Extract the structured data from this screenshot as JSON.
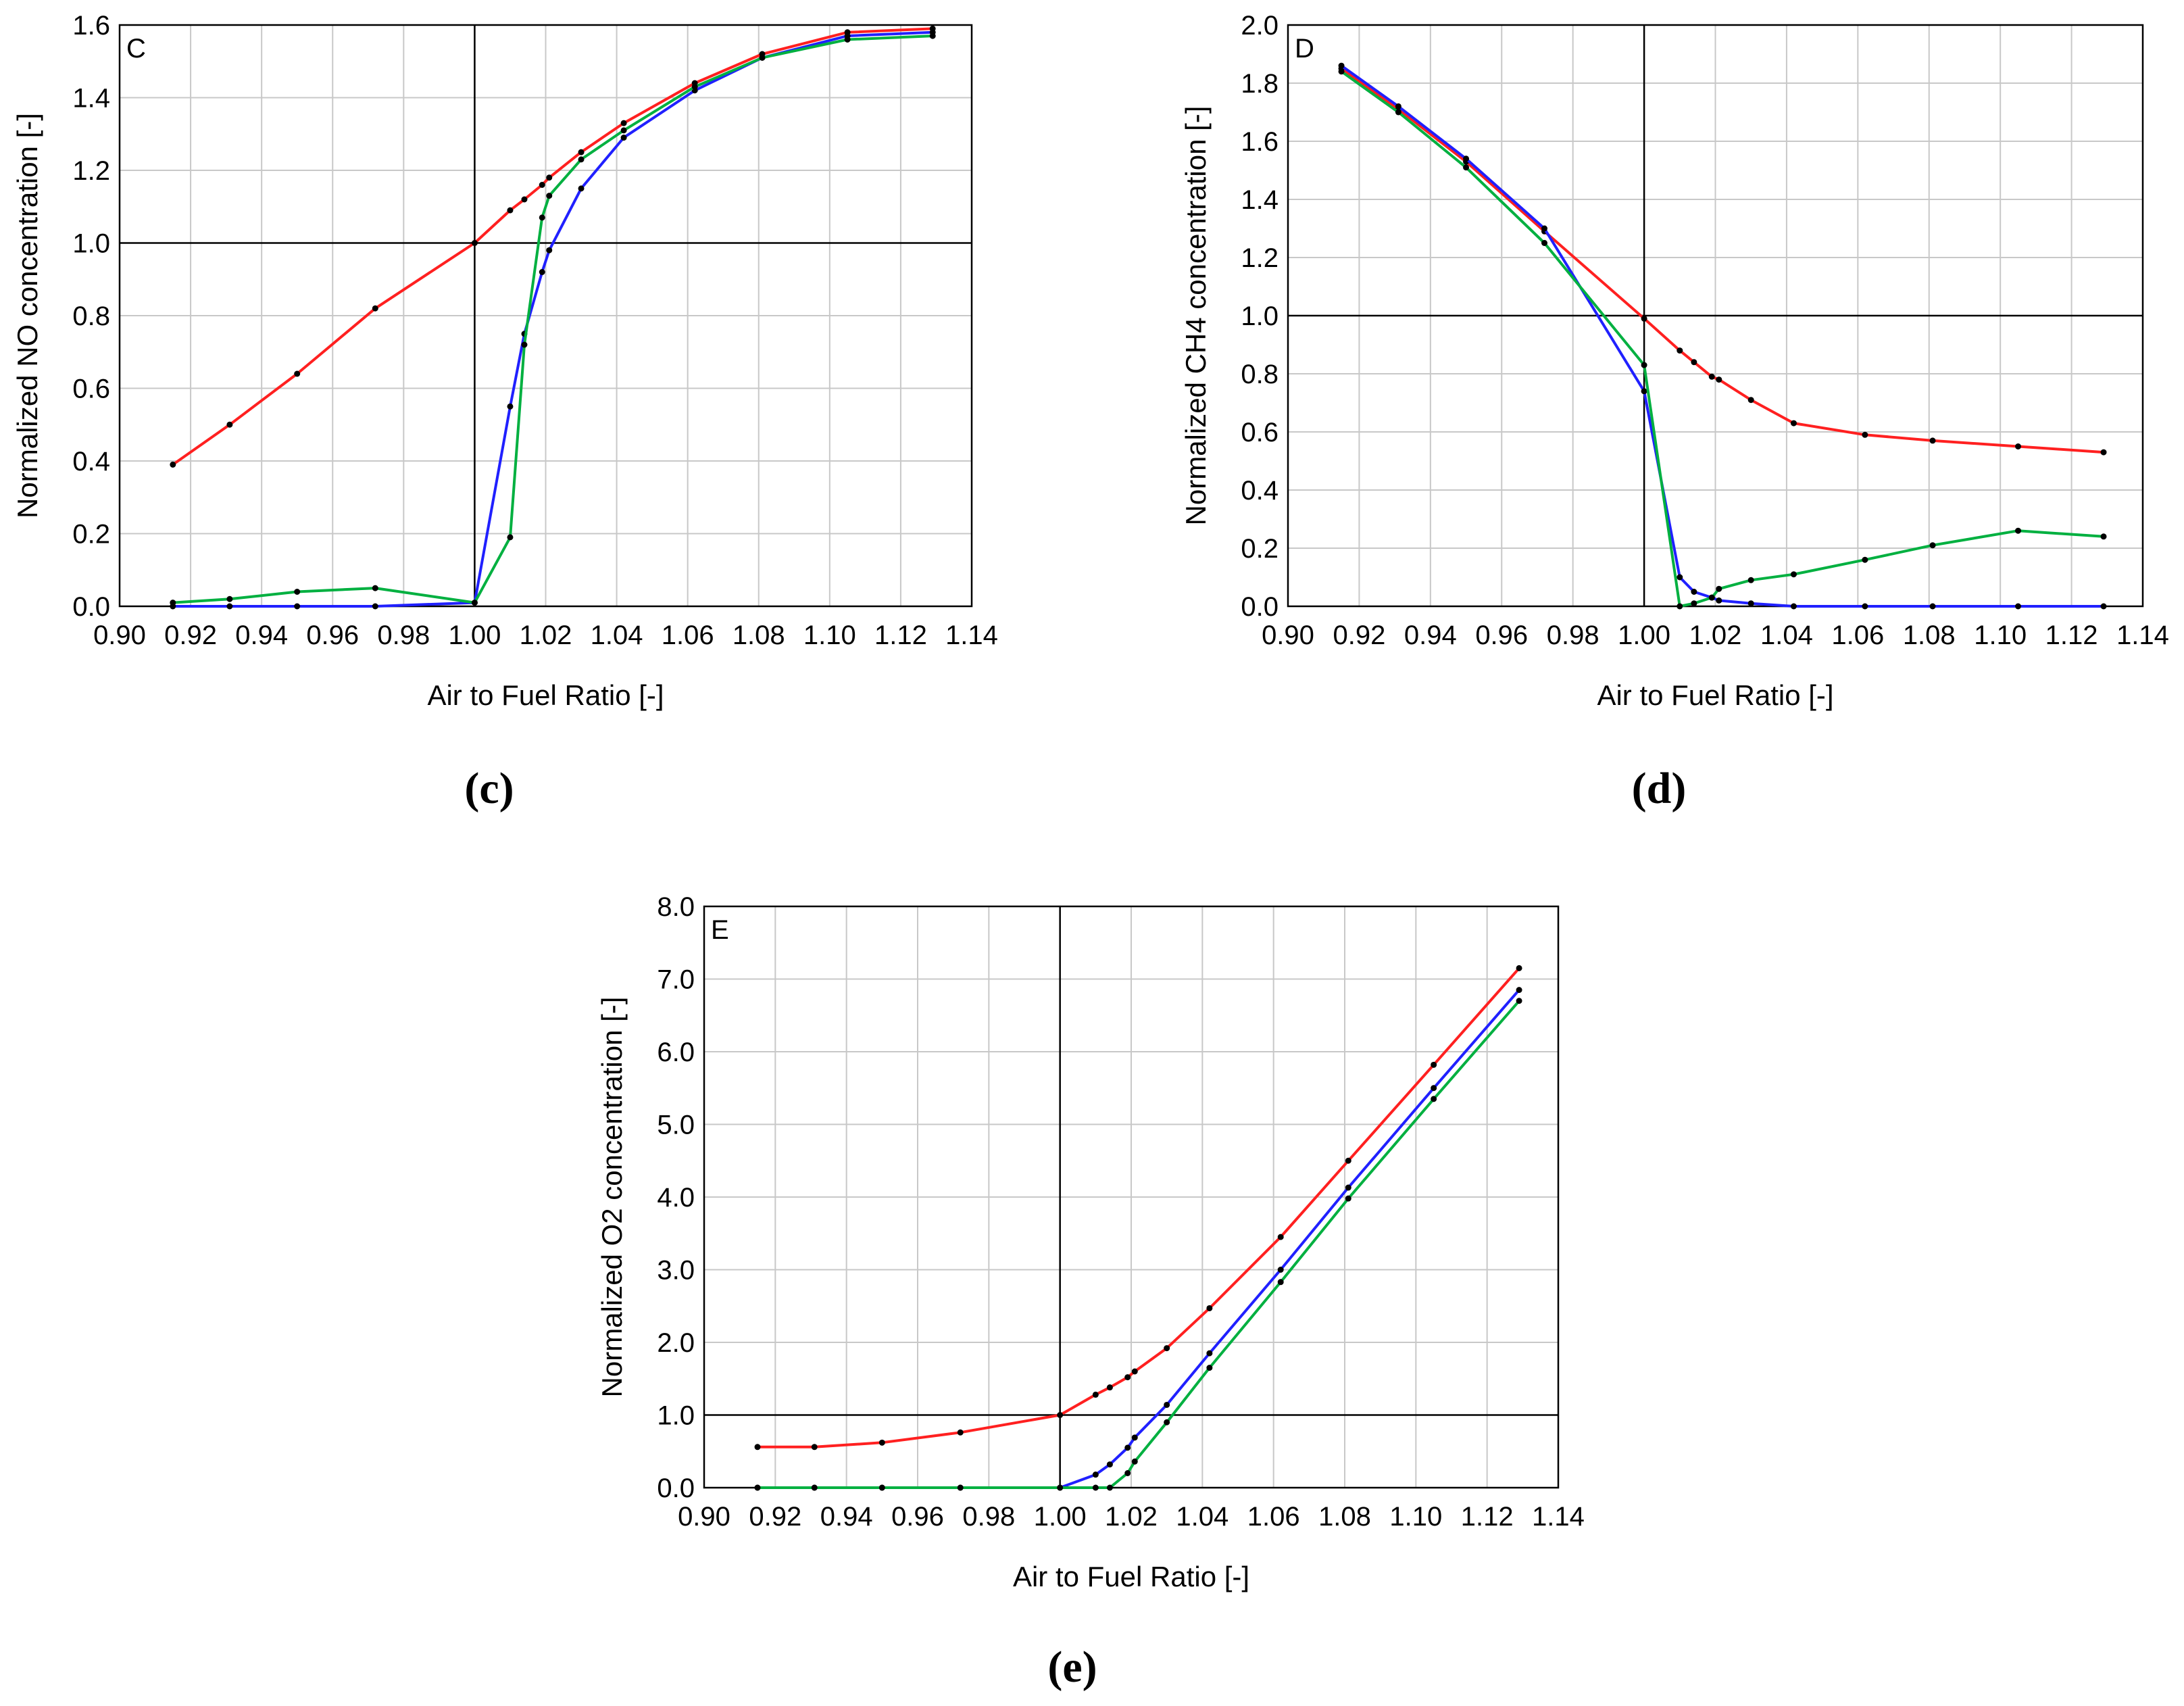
{
  "chart_data": [
    {
      "type": "line",
      "panel_label": "C",
      "caption": "(c)",
      "title": "",
      "xlabel": "Air to Fuel Ratio [-]",
      "ylabel": "Normalized NO concentration [-]",
      "xlim": [
        0.9,
        1.14
      ],
      "ylim": [
        0.0,
        1.6
      ],
      "xticks": [
        "0.90",
        "0.92",
        "0.94",
        "0.96",
        "0.98",
        "1.00",
        "1.02",
        "1.04",
        "1.06",
        "1.08",
        "1.10",
        "1.12",
        "1.14"
      ],
      "yticks": [
        "0.0",
        "0.2",
        "0.4",
        "0.6",
        "0.8",
        "1.0",
        "1.2",
        "1.4",
        "1.6"
      ],
      "reference_lines": {
        "x": 1.0,
        "y": 1.0
      },
      "grid": true,
      "series": [
        {
          "name": "red",
          "color": "#ff2020",
          "x": [
            0.915,
            0.931,
            0.95,
            0.972,
            1.0,
            1.01,
            1.014,
            1.019,
            1.021,
            1.03,
            1.042,
            1.062,
            1.081,
            1.105,
            1.129
          ],
          "y": [
            0.39,
            0.5,
            0.64,
            0.82,
            1.0,
            1.09,
            1.12,
            1.16,
            1.18,
            1.25,
            1.33,
            1.44,
            1.52,
            1.58,
            1.59
          ]
        },
        {
          "name": "blue",
          "color": "#2020ff",
          "x": [
            0.915,
            0.931,
            0.95,
            0.972,
            1.0,
            1.01,
            1.014,
            1.019,
            1.021,
            1.03,
            1.042,
            1.062,
            1.081,
            1.105,
            1.129
          ],
          "y": [
            0.0,
            0.0,
            0.0,
            0.0,
            0.01,
            0.55,
            0.75,
            0.92,
            0.98,
            1.15,
            1.29,
            1.42,
            1.51,
            1.57,
            1.58
          ]
        },
        {
          "name": "green",
          "color": "#00b040",
          "x": [
            0.915,
            0.931,
            0.95,
            0.972,
            1.0,
            1.01,
            1.014,
            1.019,
            1.021,
            1.03,
            1.042,
            1.062,
            1.081,
            1.105,
            1.129
          ],
          "y": [
            0.01,
            0.02,
            0.04,
            0.05,
            0.01,
            0.19,
            0.72,
            1.07,
            1.13,
            1.23,
            1.31,
            1.43,
            1.51,
            1.56,
            1.57
          ]
        }
      ]
    },
    {
      "type": "line",
      "panel_label": "D",
      "caption": "(d)",
      "title": "",
      "xlabel": "Air to Fuel Ratio [-]",
      "ylabel": "Normalized CH4 concentration [-]",
      "xlim": [
        0.9,
        1.14
      ],
      "ylim": [
        0.0,
        2.0
      ],
      "xticks": [
        "0.90",
        "0.92",
        "0.94",
        "0.96",
        "0.98",
        "1.00",
        "1.02",
        "1.04",
        "1.06",
        "1.08",
        "1.10",
        "1.12",
        "1.14"
      ],
      "yticks": [
        "0.0",
        "0.2",
        "0.4",
        "0.6",
        "0.8",
        "1.0",
        "1.2",
        "1.4",
        "1.6",
        "1.8",
        "2.0"
      ],
      "reference_lines": {
        "x": 1.0,
        "y": 1.0
      },
      "grid": true,
      "series": [
        {
          "name": "red",
          "color": "#ff2020",
          "x": [
            0.915,
            0.931,
            0.95,
            0.972,
            1.0,
            1.01,
            1.014,
            1.019,
            1.021,
            1.03,
            1.042,
            1.062,
            1.081,
            1.105,
            1.129
          ],
          "y": [
            1.85,
            1.71,
            1.53,
            1.29,
            0.99,
            0.88,
            0.84,
            0.79,
            0.78,
            0.71,
            0.63,
            0.59,
            0.57,
            0.55,
            0.53
          ]
        },
        {
          "name": "blue",
          "color": "#2020ff",
          "x": [
            0.915,
            0.931,
            0.95,
            0.972,
            1.0,
            1.01,
            1.014,
            1.019,
            1.021,
            1.03,
            1.042,
            1.062,
            1.081,
            1.105,
            1.129
          ],
          "y": [
            1.86,
            1.72,
            1.54,
            1.3,
            0.74,
            0.1,
            0.05,
            0.03,
            0.02,
            0.01,
            0.0,
            0.0,
            0.0,
            0.0,
            0.0
          ]
        },
        {
          "name": "green",
          "color": "#00b040",
          "x": [
            0.915,
            0.931,
            0.95,
            0.972,
            1.0,
            1.01,
            1.014,
            1.019,
            1.021,
            1.03,
            1.042,
            1.062,
            1.081,
            1.105,
            1.129
          ],
          "y": [
            1.84,
            1.7,
            1.51,
            1.25,
            0.83,
            0.0,
            0.01,
            0.03,
            0.06,
            0.09,
            0.11,
            0.16,
            0.21,
            0.26,
            0.24
          ]
        }
      ]
    },
    {
      "type": "line",
      "panel_label": "E",
      "caption": "(e)",
      "title": "",
      "xlabel": "Air to Fuel Ratio [-]",
      "ylabel": "Normalized O2 concentration [-]",
      "xlim": [
        0.9,
        1.14
      ],
      "ylim": [
        0.0,
        8.0
      ],
      "xticks": [
        "0.90",
        "0.92",
        "0.94",
        "0.96",
        "0.98",
        "1.00",
        "1.02",
        "1.04",
        "1.06",
        "1.08",
        "1.10",
        "1.12",
        "1.14"
      ],
      "yticks": [
        "0.0",
        "1.0",
        "2.0",
        "3.0",
        "4.0",
        "5.0",
        "6.0",
        "7.0",
        "8.0"
      ],
      "reference_lines": {
        "x": 1.0,
        "y": 1.0
      },
      "grid": true,
      "series": [
        {
          "name": "red",
          "color": "#ff2020",
          "x": [
            0.915,
            0.931,
            0.95,
            0.972,
            1.0,
            1.01,
            1.014,
            1.019,
            1.021,
            1.03,
            1.042,
            1.062,
            1.081,
            1.105,
            1.129
          ],
          "y": [
            0.56,
            0.56,
            0.62,
            0.76,
            1.0,
            1.28,
            1.38,
            1.52,
            1.6,
            1.92,
            2.47,
            3.45,
            4.5,
            5.82,
            7.15
          ]
        },
        {
          "name": "blue",
          "color": "#2020ff",
          "x": [
            0.915,
            0.931,
            0.95,
            0.972,
            1.0,
            1.01,
            1.014,
            1.019,
            1.021,
            1.03,
            1.042,
            1.062,
            1.081,
            1.105,
            1.129
          ],
          "y": [
            0.0,
            0.0,
            0.0,
            0.0,
            0.0,
            0.18,
            0.32,
            0.55,
            0.69,
            1.14,
            1.85,
            3.0,
            4.13,
            5.5,
            6.85
          ]
        },
        {
          "name": "green",
          "color": "#00b040",
          "x": [
            0.915,
            0.931,
            0.95,
            0.972,
            1.0,
            1.01,
            1.014,
            1.019,
            1.021,
            1.03,
            1.042,
            1.062,
            1.081,
            1.105,
            1.129
          ],
          "y": [
            0.0,
            0.0,
            0.0,
            0.0,
            0.0,
            0.0,
            0.0,
            0.2,
            0.36,
            0.9,
            1.65,
            2.83,
            3.98,
            5.35,
            6.7
          ]
        }
      ]
    }
  ]
}
